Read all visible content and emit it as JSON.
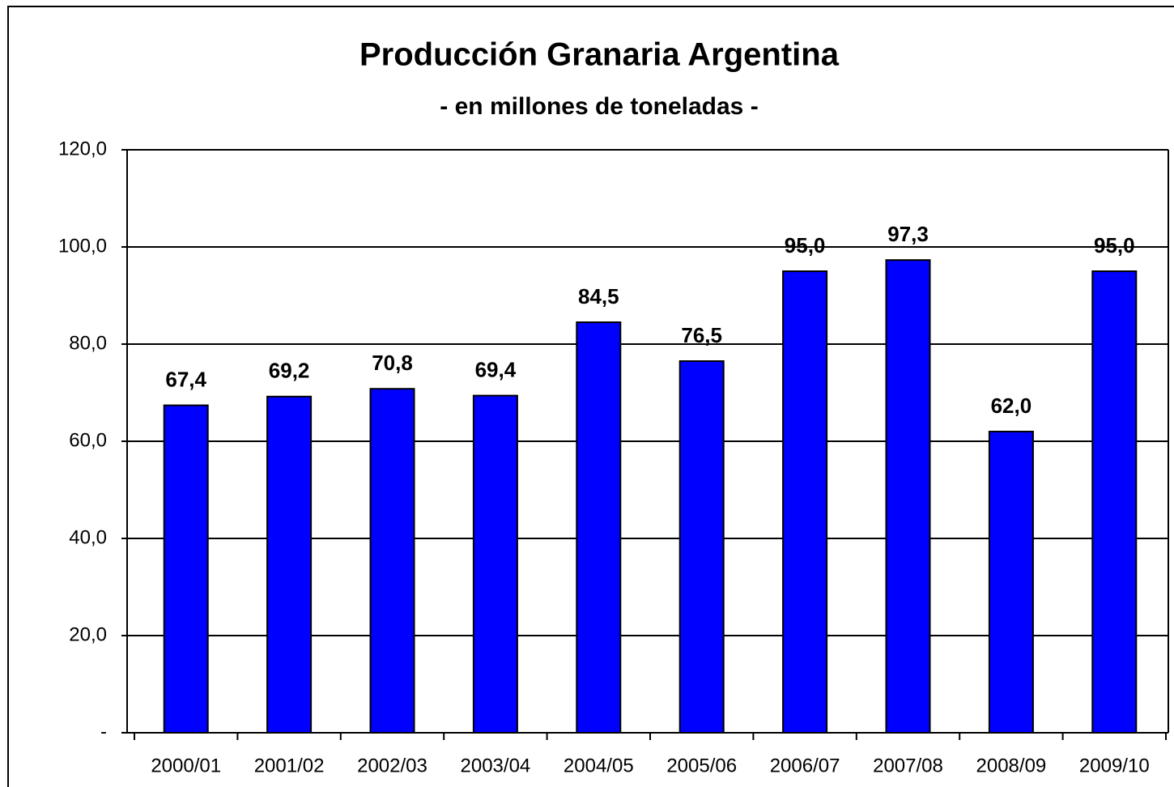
{
  "chart_data": {
    "type": "bar",
    "title": "Producción Granaria Argentina",
    "subtitle": "- en millones de toneladas -",
    "categories": [
      "2000/01",
      "2001/02",
      "2002/03",
      "2003/04",
      "2004/05",
      "2005/06",
      "2006/07",
      "2007/08",
      "2008/09",
      "2009/10"
    ],
    "values": [
      67.4,
      69.2,
      70.8,
      69.4,
      84.5,
      76.5,
      95.0,
      97.3,
      62.0,
      95.0
    ],
    "value_labels": [
      "67,4",
      "69,2",
      "70,8",
      "69,4",
      "84,5",
      "76,5",
      "95,0",
      "97,3",
      "62,0",
      "95,0"
    ],
    "color": "#0000ff",
    "ylim": [
      0,
      120
    ],
    "yticks": [
      {
        "value": 0,
        "label": "-"
      },
      {
        "value": 20,
        "label": "20,0"
      },
      {
        "value": 40,
        "label": "40,0"
      },
      {
        "value": 60,
        "label": "60,0"
      },
      {
        "value": 80,
        "label": "80,0"
      },
      {
        "value": 100,
        "label": "100,0"
      },
      {
        "value": 120,
        "label": "120,0"
      }
    ],
    "grid": true
  }
}
